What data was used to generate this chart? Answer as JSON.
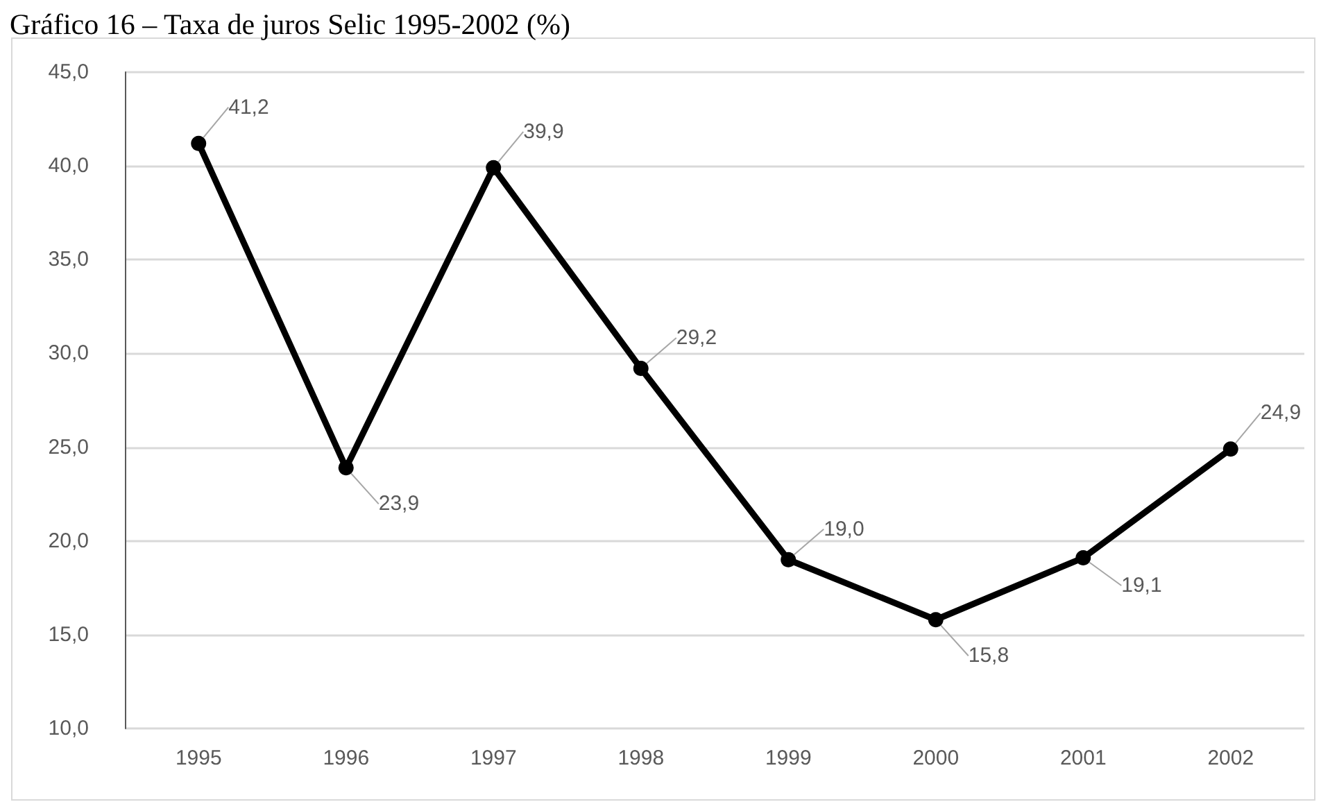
{
  "chart_data": {
    "type": "line",
    "title": "Gráfico 16 – Taxa de juros Selic 1995-2002 (%)",
    "categories": [
      "1995",
      "1996",
      "1997",
      "1998",
      "1999",
      "2000",
      "2001",
      "2002"
    ],
    "values": [
      41.2,
      23.9,
      39.9,
      29.2,
      19.0,
      15.8,
      19.1,
      24.9
    ],
    "color": "#000000",
    "value_labels": [
      "41,2",
      "23,9",
      "39,9",
      "29,2",
      "19,0",
      "15,8",
      "19,1",
      "24,9"
    ],
    "ylim": [
      10,
      45
    ],
    "yticks": [
      {
        "value": 10,
        "label": "10,0"
      },
      {
        "value": 15,
        "label": "15,0"
      },
      {
        "value": 20,
        "label": "20,0"
      },
      {
        "value": 25,
        "label": "25,0"
      },
      {
        "value": 30,
        "label": "30,0"
      },
      {
        "value": 35,
        "label": "35,0"
      },
      {
        "value": 40,
        "label": "40,0"
      },
      {
        "value": 45,
        "label": "45,0"
      }
    ],
    "grid": "y",
    "marker": "circle",
    "line_style": "solid"
  }
}
